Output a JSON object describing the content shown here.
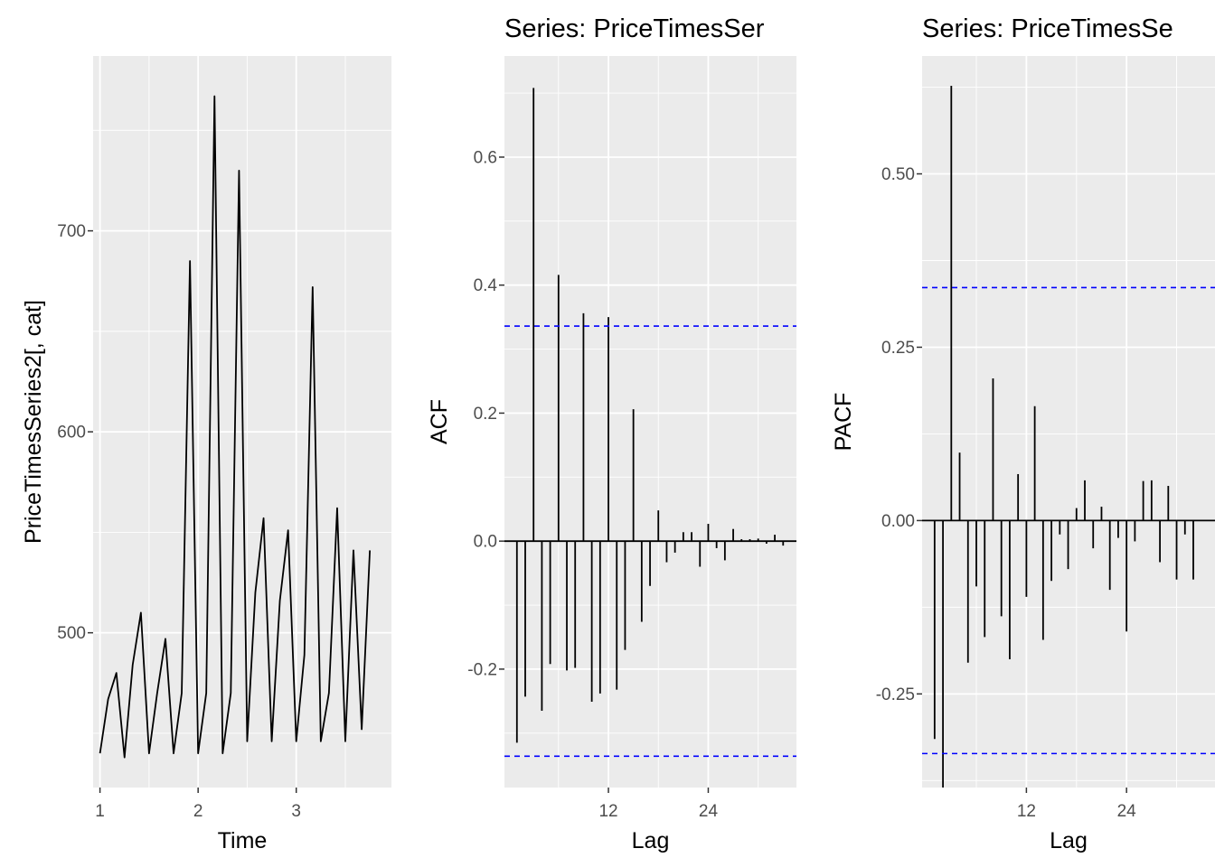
{
  "colors": {
    "panel_background": "#ebebeb",
    "gridline": "#ffffff",
    "series_line": "#000000",
    "confidence_band": "#0000ff",
    "tick_text": "#4d4d4d"
  },
  "chart_data": [
    {
      "type": "line",
      "title": "",
      "xlabel": "Time",
      "ylabel": "PriceTimesSeries2[, cat]",
      "xlim": [
        0.93,
        3.97
      ],
      "ylim": [
        423,
        787
      ],
      "x_ticks": [
        1,
        2,
        3
      ],
      "x_tick_labels": [
        "1",
        "2",
        "3"
      ],
      "y_ticks": [
        500,
        600,
        700
      ],
      "y_tick_labels": [
        "500",
        "600",
        "700"
      ],
      "grid": true,
      "x": [
        1.0,
        1.083,
        1.167,
        1.25,
        1.333,
        1.417,
        1.5,
        1.583,
        1.667,
        1.75,
        1.833,
        1.917,
        2.0,
        2.083,
        2.167,
        2.25,
        2.333,
        2.417,
        2.5,
        2.583,
        2.667,
        2.75,
        2.833,
        2.917,
        3.0,
        3.083,
        3.167,
        3.25,
        3.333,
        3.417,
        3.5,
        3.583,
        3.667,
        3.75
      ],
      "values": [
        440,
        467,
        480,
        438,
        484,
        510,
        440,
        470,
        497,
        440,
        470,
        685,
        440,
        470,
        767,
        440,
        470,
        730,
        446,
        520,
        557,
        446,
        516,
        551,
        446,
        489,
        672,
        446,
        470,
        562,
        446,
        541,
        452,
        541
      ]
    },
    {
      "type": "bar",
      "title": "Series: PriceTimesSer",
      "xlabel": "Lag",
      "ylabel": "ACF",
      "xlim": [
        -0.5,
        34.6
      ],
      "ylim": [
        -0.385,
        0.758
      ],
      "x_ticks": [
        12,
        24
      ],
      "x_tick_labels": [
        "12",
        "24"
      ],
      "y_ticks": [
        -0.2,
        0.0,
        0.2,
        0.4,
        0.6
      ],
      "y_tick_labels": [
        "-0.2",
        "0.0",
        "0.2",
        "0.4",
        "0.6"
      ],
      "grid": true,
      "confidence_limit": 0.336,
      "lags": [
        1,
        2,
        3,
        4,
        5,
        6,
        7,
        8,
        9,
        10,
        11,
        12,
        13,
        14,
        15,
        16,
        17,
        18,
        19,
        20,
        21,
        22,
        23,
        24,
        25,
        26,
        27,
        28,
        29,
        30,
        31,
        32,
        33
      ],
      "values": [
        -0.315,
        -0.243,
        0.708,
        -0.265,
        -0.192,
        0.416,
        -0.202,
        -0.198,
        0.356,
        -0.251,
        -0.238,
        0.35,
        -0.232,
        -0.17,
        0.206,
        -0.126,
        -0.07,
        0.048,
        -0.033,
        -0.018,
        0.014,
        0.014,
        -0.04,
        0.027,
        -0.011,
        -0.03,
        0.019,
        0.003,
        0.003,
        0.004,
        -0.004,
        0.01,
        -0.007
      ]
    },
    {
      "type": "bar",
      "title": "Series: PriceTimesSe",
      "xlabel": "Lag",
      "ylabel": "PACF",
      "xlim": [
        -0.5,
        34.6
      ],
      "ylim": [
        -0.385,
        0.67
      ],
      "x_ticks": [
        12,
        24
      ],
      "x_tick_labels": [
        "12",
        "24"
      ],
      "y_ticks": [
        -0.25,
        0.0,
        0.25,
        0.5
      ],
      "y_tick_labels": [
        "-0.25",
        "0.00",
        "0.25",
        "0.50"
      ],
      "grid": true,
      "confidence_limit": 0.336,
      "lags": [
        1,
        2,
        3,
        4,
        5,
        6,
        7,
        8,
        9,
        10,
        11,
        12,
        13,
        14,
        15,
        16,
        17,
        18,
        19,
        20,
        21,
        22,
        23,
        24,
        25,
        26,
        27,
        28,
        29,
        30,
        31,
        32,
        33
      ],
      "values": [
        -0.315,
        -0.385,
        0.627,
        0.098,
        -0.205,
        -0.095,
        -0.168,
        0.205,
        -0.138,
        -0.2,
        0.067,
        -0.11,
        0.165,
        -0.172,
        -0.087,
        -0.02,
        -0.07,
        0.018,
        0.058,
        -0.04,
        0.02,
        -0.1,
        -0.025,
        -0.16,
        -0.03,
        0.057,
        0.058,
        -0.06,
        0.05,
        -0.085,
        -0.02,
        -0.085,
        0.0
      ]
    }
  ]
}
